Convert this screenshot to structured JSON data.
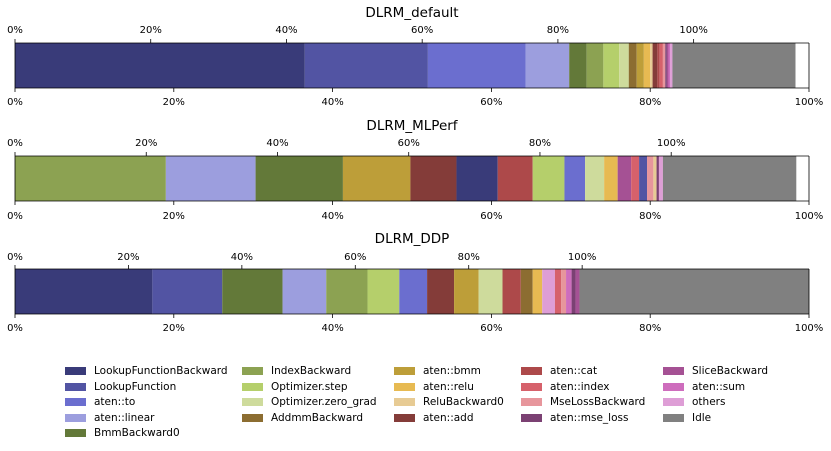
{
  "chart_data": [
    {
      "type": "bar",
      "orientation": "horizontal-stacked",
      "title": "DLRM_default",
      "bottom_axis": {
        "min": 0,
        "max": 100,
        "ticks": [
          "0%",
          "20%",
          "40%",
          "60%",
          "80%",
          "100%"
        ]
      },
      "top_axis": {
        "min": 0,
        "max": 117,
        "ticks": [
          "0%",
          "20%",
          "40%",
          "60%",
          "80%",
          "100%"
        ]
      },
      "segments": [
        {
          "name": "LookupFunctionBackward",
          "value": 36.5
        },
        {
          "name": "LookupFunction",
          "value": 15.5
        },
        {
          "name": "aten::to",
          "value": 12.3
        },
        {
          "name": "aten::linear",
          "value": 5.5
        },
        {
          "name": "BmmBackward0",
          "value": 2.2
        },
        {
          "name": "IndexBackward",
          "value": 2.1
        },
        {
          "name": "Optimizer.step",
          "value": 2.0
        },
        {
          "name": "Optimizer.zero_grad",
          "value": 1.2
        },
        {
          "name": "AddmmBackward",
          "value": 1.0
        },
        {
          "name": "aten::bmm",
          "value": 0.9
        },
        {
          "name": "aten::relu",
          "value": 0.8
        },
        {
          "name": "ReluBackward0",
          "value": 0.3
        },
        {
          "name": "aten::add",
          "value": 0.6
        },
        {
          "name": "aten::cat",
          "value": 0.3
        },
        {
          "name": "aten::index",
          "value": 0.4
        },
        {
          "name": "MseLossBackward",
          "value": 0.3
        },
        {
          "name": "aten::mse_loss",
          "value": 0.2
        },
        {
          "name": "SliceBackward",
          "value": 0.2
        },
        {
          "name": "aten::sum",
          "value": 0.2
        },
        {
          "name": "others",
          "value": 0.3
        },
        {
          "name": "Idle",
          "value": 15.5
        }
      ]
    },
    {
      "type": "bar",
      "orientation": "horizontal-stacked",
      "title": "DLRM_MLPerf",
      "bottom_axis": {
        "min": 0,
        "max": 100,
        "ticks": [
          "0%",
          "20%",
          "40%",
          "60%",
          "80%",
          "100%"
        ]
      },
      "top_axis": {
        "min": 0,
        "max": 121,
        "ticks": [
          "0%",
          "20%",
          "40%",
          "60%",
          "80%",
          "100%"
        ]
      },
      "segments": [
        {
          "name": "IndexBackward",
          "value": 19.0
        },
        {
          "name": "aten::linear",
          "value": 11.3
        },
        {
          "name": "BmmBackward0",
          "value": 11.0
        },
        {
          "name": "aten::bmm",
          "value": 8.5
        },
        {
          "name": "aten::add",
          "value": 5.8
        },
        {
          "name": "LookupFunctionBackward",
          "value": 5.2
        },
        {
          "name": "aten::cat",
          "value": 4.4
        },
        {
          "name": "Optimizer.step",
          "value": 4.0
        },
        {
          "name": "aten::to",
          "value": 2.6
        },
        {
          "name": "Optimizer.zero_grad",
          "value": 2.4
        },
        {
          "name": "aten::relu",
          "value": 1.7
        },
        {
          "name": "SliceBackward",
          "value": 1.7
        },
        {
          "name": "aten::index",
          "value": 1.0
        },
        {
          "name": "LookupFunction",
          "value": 1.0
        },
        {
          "name": "MseLossBackward",
          "value": 0.8
        },
        {
          "name": "ReluBackward0",
          "value": 0.4
        },
        {
          "name": "aten::mse_loss",
          "value": 0.3
        },
        {
          "name": "others",
          "value": 0.5
        },
        {
          "name": "Idle",
          "value": 16.8
        }
      ]
    },
    {
      "type": "bar",
      "orientation": "horizontal-stacked",
      "title": "DLRM_DDP",
      "bottom_axis": {
        "min": 0,
        "max": 100,
        "ticks": [
          "0%",
          "20%",
          "40%",
          "60%",
          "80%",
          "100%"
        ]
      },
      "top_axis": {
        "min": 0,
        "max": 140,
        "ticks": [
          "0%",
          "20%",
          "40%",
          "60%",
          "80%",
          "100%"
        ]
      },
      "segments": [
        {
          "name": "LookupFunctionBackward",
          "value": 17.3
        },
        {
          "name": "LookupFunction",
          "value": 8.8
        },
        {
          "name": "BmmBackward0",
          "value": 7.6
        },
        {
          "name": "aten::linear",
          "value": 5.5
        },
        {
          "name": "IndexBackward",
          "value": 5.2
        },
        {
          "name": "Optimizer.step",
          "value": 4.0
        },
        {
          "name": "aten::to",
          "value": 3.5
        },
        {
          "name": "aten::add",
          "value": 3.4
        },
        {
          "name": "aten::bmm",
          "value": 3.1
        },
        {
          "name": "Optimizer.zero_grad",
          "value": 3.0
        },
        {
          "name": "aten::cat",
          "value": 2.3
        },
        {
          "name": "AddmmBackward",
          "value": 1.5
        },
        {
          "name": "aten::relu",
          "value": 1.2
        },
        {
          "name": "others",
          "value": 1.6
        },
        {
          "name": "aten::index",
          "value": 0.8
        },
        {
          "name": "MseLossBackward",
          "value": 0.6
        },
        {
          "name": "aten::sum",
          "value": 0.7
        },
        {
          "name": "aten::mse_loss",
          "value": 0.5
        },
        {
          "name": "SliceBackward",
          "value": 0.5
        },
        {
          "name": "Idle",
          "value": 28.9
        }
      ]
    }
  ],
  "legend": {
    "placement": "bottom",
    "columns": 6,
    "entries": [
      {
        "label": "LookupFunctionBackward",
        "color": "#393b79"
      },
      {
        "label": "LookupFunction",
        "color": "#5254a3"
      },
      {
        "label": "aten::to",
        "color": "#6b6ecf"
      },
      {
        "label": "aten::linear",
        "color": "#9c9ede"
      },
      {
        "label": "BmmBackward0",
        "color": "#637939"
      },
      {
        "label": "IndexBackward",
        "color": "#8ca252"
      },
      {
        "label": "Optimizer.step",
        "color": "#b5cf6b"
      },
      {
        "label": "Optimizer.zero_grad",
        "color": "#cedb9c"
      },
      {
        "label": "AddmmBackward",
        "color": "#8c6d31"
      },
      {
        "label": "aten::bmm",
        "color": "#bd9e39"
      },
      {
        "label": "aten::relu",
        "color": "#e7ba52"
      },
      {
        "label": "ReluBackward0",
        "color": "#e7cb94"
      },
      {
        "label": "aten::add",
        "color": "#843c39"
      },
      {
        "label": "aten::cat",
        "color": "#ad494a"
      },
      {
        "label": "aten::index",
        "color": "#d6616b"
      },
      {
        "label": "MseLossBackward",
        "color": "#e7969c"
      },
      {
        "label": "aten::mse_loss",
        "color": "#7b4173"
      },
      {
        "label": "SliceBackward",
        "color": "#a55194"
      },
      {
        "label": "aten::sum",
        "color": "#ce6dbd"
      },
      {
        "label": "others",
        "color": "#de9ed6"
      },
      {
        "label": "Idle",
        "color": "#808080"
      }
    ]
  }
}
